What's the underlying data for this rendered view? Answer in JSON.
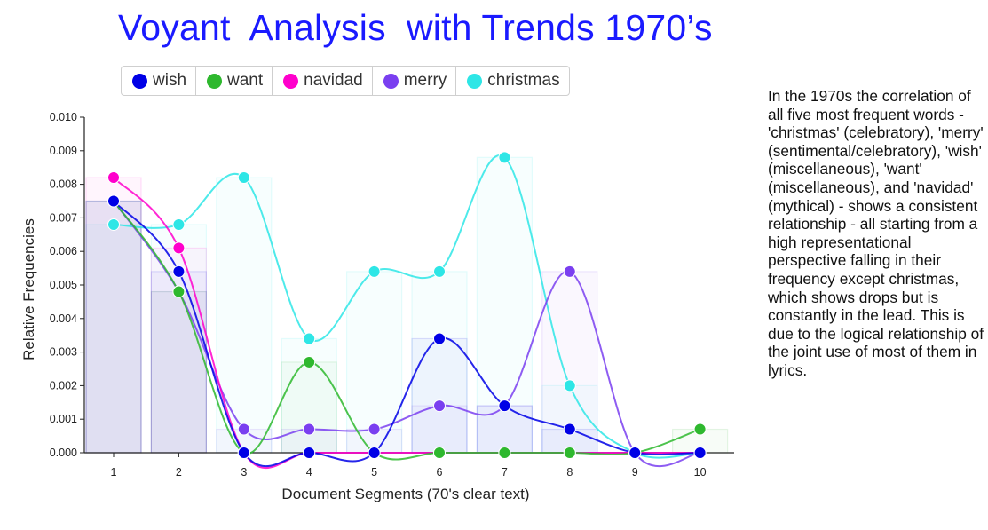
{
  "title": "Voyant  Analysis  with Trends 1970’s",
  "description": "In the 1970s the correlation of all five most frequent words - 'christmas' (celebratory), 'merry' (sentimental/celebratory), 'wish' (miscellaneous), 'want' (miscellaneous), and 'navidad' (mythical) - shows a consistent relationship - all starting from a high representational perspective falling in their frequency except christmas, which shows drops but is constantly in the lead. This is due to the logical relationship of the joint use of most of them in lyrics.",
  "legend": [
    {
      "label": "wish",
      "color": "#0000e6"
    },
    {
      "label": "want",
      "color": "#2eb82e"
    },
    {
      "label": "navidad",
      "color": "#ff00cc"
    },
    {
      "label": "merry",
      "color": "#7a3ff0"
    },
    {
      "label": "christmas",
      "color": "#2ee6e6"
    }
  ],
  "chart_data": {
    "type": "line",
    "xlabel": "Document Segments (70's clear text)",
    "ylabel": "Relative Frequencies",
    "x": [
      1,
      2,
      3,
      4,
      5,
      6,
      7,
      8,
      9,
      10
    ],
    "ylim": [
      0,
      0.01
    ],
    "yticks": [
      "0.000",
      "0.001",
      "0.002",
      "0.003",
      "0.004",
      "0.005",
      "0.006",
      "0.007",
      "0.008",
      "0.009",
      "0.010"
    ],
    "xticks": [
      "1",
      "2",
      "3",
      "4",
      "5",
      "6",
      "7",
      "8",
      "9",
      "10"
    ],
    "series": [
      {
        "name": "christmas",
        "color": "#2ee6e6",
        "values": [
          0.0068,
          0.0068,
          0.0082,
          0.0034,
          0.0054,
          0.0054,
          0.0088,
          0.002,
          0.0,
          0.0
        ]
      },
      {
        "name": "merry",
        "color": "#7a3ff0",
        "values": [
          0.0075,
          0.0048,
          0.0007,
          0.0007,
          0.0007,
          0.0014,
          0.0014,
          0.0054,
          0.0,
          0.0
        ]
      },
      {
        "name": "navidad",
        "color": "#ff00cc",
        "values": [
          0.0082,
          0.0061,
          0.0,
          0.0,
          0.0,
          0.0,
          0.0,
          0.0,
          0.0,
          0.0
        ]
      },
      {
        "name": "want",
        "color": "#2eb82e",
        "values": [
          0.0075,
          0.0048,
          0.0,
          0.0027,
          0.0,
          0.0,
          0.0,
          0.0,
          0.0,
          0.0007
        ]
      },
      {
        "name": "wish",
        "color": "#0000e6",
        "values": [
          0.0075,
          0.0054,
          0.0,
          0.0,
          0.0,
          0.0034,
          0.0014,
          0.0007,
          0.0,
          0.0
        ]
      }
    ],
    "grid": false,
    "legend_position": "top"
  }
}
